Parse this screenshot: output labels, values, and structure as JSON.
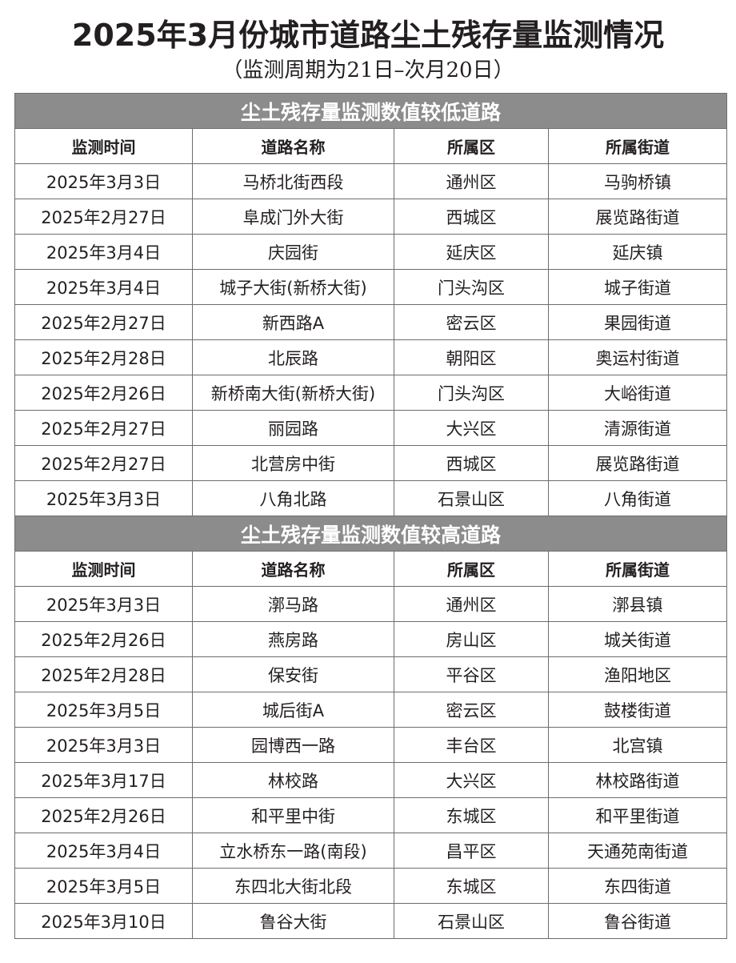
{
  "title": "2025年3月份城市道路尘土残存量监测情况",
  "subtitle": "（监测周期为21日–次月20日）",
  "columns": [
    "监测时间",
    "道路名称",
    "所属区",
    "所属街道"
  ],
  "sections": [
    {
      "heading": "尘土残存量监测数值较低道路",
      "rows": [
        [
          "2025年3月3日",
          "马桥北街西段",
          "通州区",
          "马驹桥镇"
        ],
        [
          "2025年2月27日",
          "阜成门外大街",
          "西城区",
          "展览路街道"
        ],
        [
          "2025年3月4日",
          "庆园街",
          "延庆区",
          "延庆镇"
        ],
        [
          "2025年3月4日",
          "城子大街(新桥大街)",
          "门头沟区",
          "城子街道"
        ],
        [
          "2025年2月27日",
          "新西路A",
          "密云区",
          "果园街道"
        ],
        [
          "2025年2月28日",
          "北辰路",
          "朝阳区",
          "奥运村街道"
        ],
        [
          "2025年2月26日",
          "新桥南大街(新桥大街)",
          "门头沟区",
          "大峪街道"
        ],
        [
          "2025年2月27日",
          "丽园路",
          "大兴区",
          "清源街道"
        ],
        [
          "2025年2月27日",
          "北营房中街",
          "西城区",
          "展览路街道"
        ],
        [
          "2025年3月3日",
          "八角北路",
          "石景山区",
          "八角街道"
        ]
      ]
    },
    {
      "heading": "尘土残存量监测数值较高道路",
      "rows": [
        [
          "2025年3月3日",
          "漷马路",
          "通州区",
          "漷县镇"
        ],
        [
          "2025年2月26日",
          "燕房路",
          "房山区",
          "城关街道"
        ],
        [
          "2025年2月28日",
          "保安街",
          "平谷区",
          "渔阳地区"
        ],
        [
          "2025年3月5日",
          "城后街A",
          "密云区",
          "鼓楼街道"
        ],
        [
          "2025年3月3日",
          "园博西一路",
          "丰台区",
          "北宫镇"
        ],
        [
          "2025年3月17日",
          "林校路",
          "大兴区",
          "林校路街道"
        ],
        [
          "2025年2月26日",
          "和平里中街",
          "东城区",
          "和平里街道"
        ],
        [
          "2025年3月4日",
          "立水桥东一路(南段)",
          "昌平区",
          "天通苑南街道"
        ],
        [
          "2025年3月5日",
          "东四北大街北段",
          "东城区",
          "东四街道"
        ],
        [
          "2025年3月10日",
          "鲁谷大街",
          "石景山区",
          "鲁谷街道"
        ]
      ]
    }
  ]
}
